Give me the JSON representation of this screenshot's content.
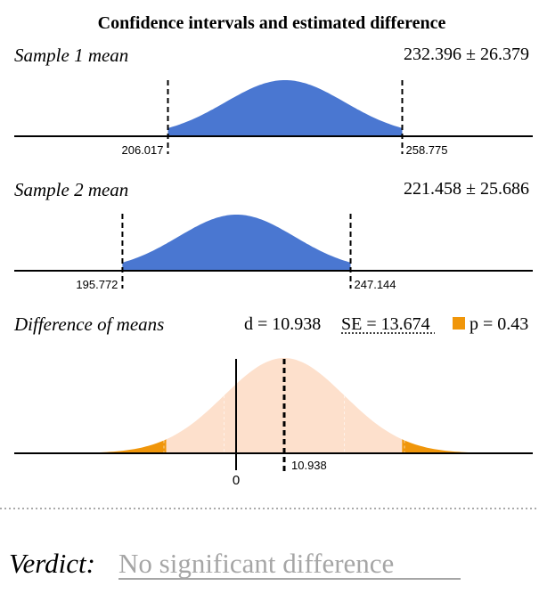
{
  "chart_data": {
    "type": "area",
    "title": "Confidence intervals and estimated difference",
    "sample1": {
      "label": "Sample 1 mean",
      "mean": 232.396,
      "margin": 26.379,
      "ci_text": "232.396 ± 26.379",
      "lower": 206.017,
      "upper": 258.775,
      "lower_label": "206.017",
      "upper_label": "258.775",
      "color": "#4a77d1"
    },
    "sample2": {
      "label": "Sample 2 mean",
      "mean": 221.458,
      "margin": 25.686,
      "ci_text": "221.458 ± 25.686",
      "lower": 195.772,
      "upper": 247.144,
      "lower_label": "195.772",
      "upper_label": "247.144",
      "color": "#4a77d1"
    },
    "difference": {
      "label": "Difference of means",
      "d": 10.938,
      "se": 13.674,
      "p": 0.43,
      "d_text": "d = 10.938",
      "se_text": "SE = 13.674",
      "p_text": "p = 0.43",
      "d_label": "10.938",
      "zero_label": "0",
      "tail_color": "#f0960a",
      "center_color": "#fde0cc"
    }
  },
  "verdict": {
    "label": "Verdict:",
    "text": "No significant difference"
  }
}
